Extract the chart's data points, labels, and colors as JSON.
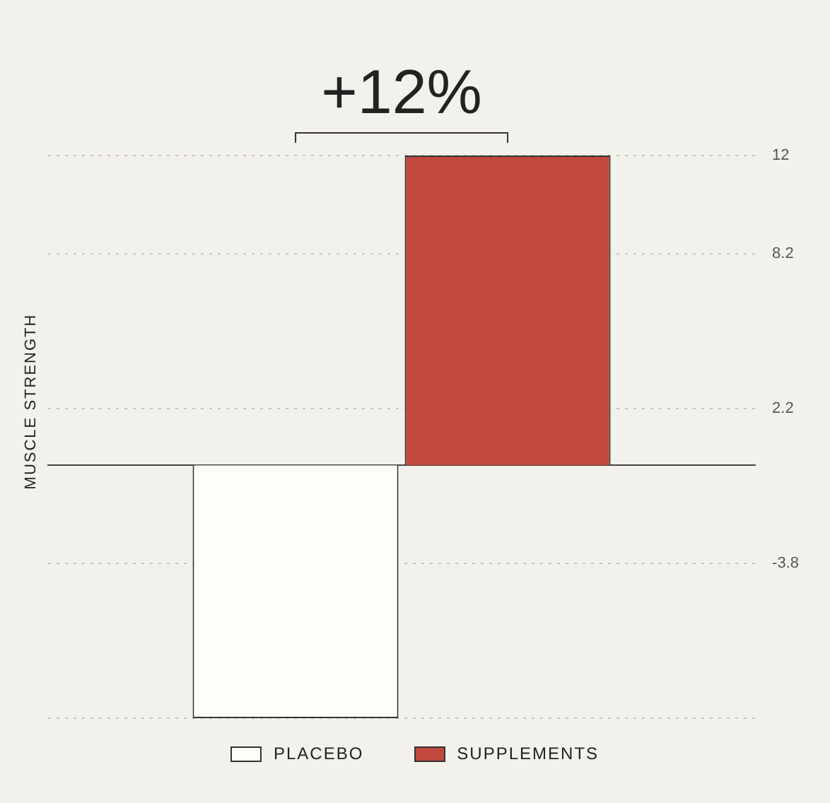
{
  "chart_data": {
    "type": "bar",
    "categories": [
      null
    ],
    "series": [
      {
        "name": "PLACEBO",
        "color": "#fefdf8",
        "values": [
          -9.8
        ]
      },
      {
        "name": "SUPPLEMENTS",
        "color": "#c1483f",
        "values": [
          12
        ]
      }
    ],
    "ylabel": "MUSCLE STRENGTH",
    "ylim": [
      -9.8,
      12
    ],
    "yticks": [
      {
        "value": -9.8,
        "label": null
      },
      -3.8,
      2.2,
      8.2,
      12
    ],
    "annotations": [
      "+12%"
    ],
    "grid": "y",
    "legend": "bottom"
  }
}
